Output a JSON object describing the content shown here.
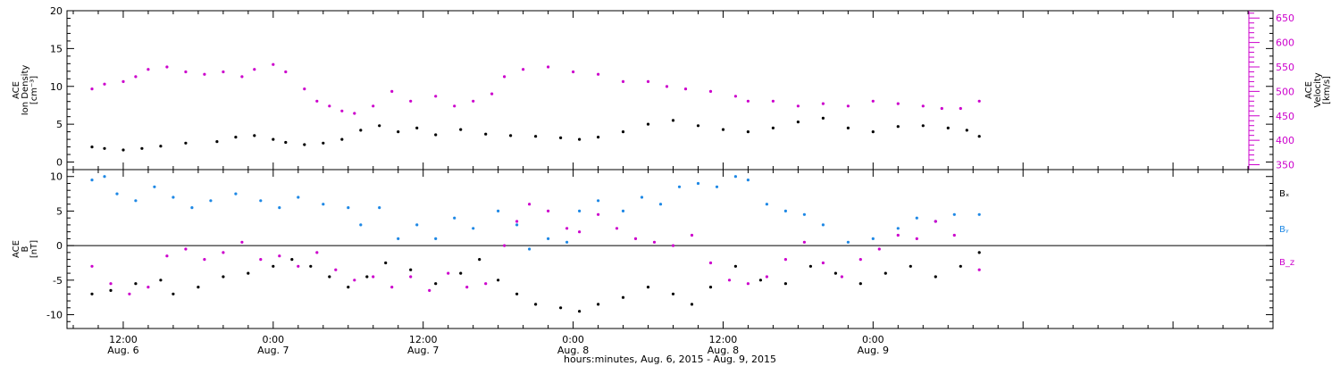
{
  "chart_data": [
    {
      "type": "scatter",
      "panel": "plasma",
      "ylabel": [
        "ACE",
        "Ion Density",
        "[cm⁻³]"
      ],
      "ylim": [
        -1,
        20
      ],
      "yticks": [
        0,
        5,
        10,
        15,
        20
      ],
      "y2label": [
        "ACE",
        "Velocity",
        "[km/s]"
      ],
      "y2lim": [
        340,
        665
      ],
      "y2ticks": [
        350,
        400,
        450,
        500,
        550,
        600,
        650
      ],
      "series": [
        {
          "color": "#000000",
          "axis": "left",
          "points": [
            [
              9.5,
              2.0
            ],
            [
              10.5,
              1.8
            ],
            [
              12.0,
              1.6
            ],
            [
              13.5,
              1.8
            ],
            [
              15.0,
              2.1
            ],
            [
              17.0,
              2.5
            ],
            [
              19.5,
              2.7
            ],
            [
              21.0,
              3.3
            ],
            [
              22.5,
              3.5
            ],
            [
              24.0,
              3.0
            ],
            [
              25.0,
              2.6
            ],
            [
              26.5,
              2.3
            ],
            [
              28.0,
              2.5
            ],
            [
              29.5,
              3.0
            ],
            [
              31.0,
              4.2
            ],
            [
              32.5,
              4.8
            ],
            [
              34.0,
              4.0
            ],
            [
              35.5,
              4.5
            ],
            [
              37.0,
              3.6
            ],
            [
              39.0,
              4.3
            ],
            [
              41.0,
              3.7
            ],
            [
              43.0,
              3.5
            ],
            [
              45.0,
              3.4
            ],
            [
              47.0,
              3.2
            ],
            [
              48.5,
              3.0
            ],
            [
              50.0,
              3.3
            ],
            [
              52.0,
              4.0
            ],
            [
              54.0,
              5.0
            ],
            [
              56.0,
              5.5
            ],
            [
              58.0,
              4.8
            ],
            [
              60.0,
              4.3
            ],
            [
              62.0,
              4.0
            ],
            [
              64.0,
              4.5
            ],
            [
              66.0,
              5.3
            ],
            [
              68.0,
              5.8
            ],
            [
              70.0,
              4.5
            ],
            [
              72.0,
              4.0
            ],
            [
              74.0,
              4.7
            ],
            [
              76.0,
              4.8
            ],
            [
              78.0,
              4.5
            ],
            [
              79.5,
              4.2
            ],
            [
              80.5,
              3.4
            ]
          ]
        },
        {
          "color": "#cc00cc",
          "axis": "right",
          "points": [
            [
              9.5,
              505
            ],
            [
              10.5,
              515
            ],
            [
              12.0,
              520
            ],
            [
              13.0,
              530
            ],
            [
              14.0,
              545
            ],
            [
              15.5,
              550
            ],
            [
              17.0,
              540
            ],
            [
              18.5,
              535
            ],
            [
              20.0,
              540
            ],
            [
              21.5,
              530
            ],
            [
              22.5,
              545
            ],
            [
              24.0,
              555
            ],
            [
              25.0,
              540
            ],
            [
              26.5,
              505
            ],
            [
              27.5,
              480
            ],
            [
              28.5,
              470
            ],
            [
              29.5,
              460
            ],
            [
              30.5,
              455
            ],
            [
              32.0,
              470
            ],
            [
              33.5,
              500
            ],
            [
              35.0,
              480
            ],
            [
              37.0,
              490
            ],
            [
              38.5,
              470
            ],
            [
              40.0,
              480
            ],
            [
              41.5,
              495
            ],
            [
              42.5,
              530
            ],
            [
              44.0,
              545
            ],
            [
              46.0,
              550
            ],
            [
              48.0,
              540
            ],
            [
              50.0,
              535
            ],
            [
              52.0,
              520
            ],
            [
              54.0,
              520
            ],
            [
              55.5,
              510
            ],
            [
              57.0,
              505
            ],
            [
              59.0,
              500
            ],
            [
              61.0,
              490
            ],
            [
              62.0,
              480
            ],
            [
              64.0,
              480
            ],
            [
              66.0,
              470
            ],
            [
              68.0,
              475
            ],
            [
              70.0,
              470
            ],
            [
              72.0,
              480
            ],
            [
              74.0,
              475
            ],
            [
              76.0,
              470
            ],
            [
              77.5,
              465
            ],
            [
              79.0,
              465
            ],
            [
              80.5,
              480
            ]
          ]
        }
      ]
    },
    {
      "type": "scatter",
      "panel": "imf",
      "ylabel": [
        "ACE",
        "B",
        "[nT]"
      ],
      "ylim": [
        -12,
        11
      ],
      "yticks": [
        -10,
        -5,
        0,
        5,
        10
      ],
      "zero_line": true,
      "legend": [
        "Bₓ",
        "Bᵧ",
        "B_z"
      ],
      "series": [
        {
          "name": "Bₓ",
          "color": "#000000",
          "points": [
            [
              9.5,
              -7.0
            ],
            [
              11.0,
              -6.5
            ],
            [
              13.0,
              -5.5
            ],
            [
              15.0,
              -5.0
            ],
            [
              16.0,
              -7.0
            ],
            [
              18.0,
              -6.0
            ],
            [
              20.0,
              -4.5
            ],
            [
              22.0,
              -4.0
            ],
            [
              24.0,
              -3.0
            ],
            [
              25.5,
              -2.0
            ],
            [
              27.0,
              -3.0
            ],
            [
              28.5,
              -4.5
            ],
            [
              30.0,
              -6.0
            ],
            [
              31.5,
              -4.5
            ],
            [
              33.0,
              -2.5
            ],
            [
              35.0,
              -3.5
            ],
            [
              37.0,
              -5.5
            ],
            [
              39.0,
              -4.0
            ],
            [
              40.5,
              -2.0
            ],
            [
              42.0,
              -5.0
            ],
            [
              43.5,
              -7.0
            ],
            [
              45.0,
              -8.5
            ],
            [
              47.0,
              -9.0
            ],
            [
              48.5,
              -9.5
            ],
            [
              50.0,
              -8.5
            ],
            [
              52.0,
              -7.5
            ],
            [
              54.0,
              -6.0
            ],
            [
              56.0,
              -7.0
            ],
            [
              57.5,
              -8.5
            ],
            [
              59.0,
              -6.0
            ],
            [
              61.0,
              -3.0
            ],
            [
              63.0,
              -5.0
            ],
            [
              65.0,
              -5.5
            ],
            [
              67.0,
              -3.0
            ],
            [
              69.0,
              -4.0
            ],
            [
              71.0,
              -5.5
            ],
            [
              73.0,
              -4.0
            ],
            [
              75.0,
              -3.0
            ],
            [
              77.0,
              -4.5
            ],
            [
              79.0,
              -3.0
            ],
            [
              80.5,
              -1.0
            ]
          ]
        },
        {
          "name": "Bᵧ",
          "color": "#1e88e5",
          "points": [
            [
              9.5,
              9.5
            ],
            [
              10.5,
              10.0
            ],
            [
              11.5,
              7.5
            ],
            [
              13.0,
              6.5
            ],
            [
              14.5,
              8.5
            ],
            [
              16.0,
              7.0
            ],
            [
              17.5,
              5.5
            ],
            [
              19.0,
              6.5
            ],
            [
              21.0,
              7.5
            ],
            [
              23.0,
              6.5
            ],
            [
              24.5,
              5.5
            ],
            [
              26.0,
              7.0
            ],
            [
              28.0,
              6.0
            ],
            [
              30.0,
              5.5
            ],
            [
              31.0,
              3.0
            ],
            [
              32.5,
              5.5
            ],
            [
              34.0,
              1.0
            ],
            [
              35.5,
              3.0
            ],
            [
              37.0,
              1.0
            ],
            [
              38.5,
              4.0
            ],
            [
              40.0,
              2.5
            ],
            [
              42.0,
              5.0
            ],
            [
              43.5,
              3.0
            ],
            [
              44.5,
              -0.5
            ],
            [
              46.0,
              1.0
            ],
            [
              47.5,
              0.5
            ],
            [
              48.5,
              5.0
            ],
            [
              50.0,
              6.5
            ],
            [
              52.0,
              5.0
            ],
            [
              53.5,
              7.0
            ],
            [
              55.0,
              6.0
            ],
            [
              56.5,
              8.5
            ],
            [
              58.0,
              9.0
            ],
            [
              59.5,
              8.5
            ],
            [
              61.0,
              10.0
            ],
            [
              62.0,
              9.5
            ],
            [
              63.5,
              6.0
            ],
            [
              65.0,
              5.0
            ],
            [
              66.5,
              4.5
            ],
            [
              68.0,
              3.0
            ],
            [
              70.0,
              0.5
            ],
            [
              72.0,
              1.0
            ],
            [
              74.0,
              2.5
            ],
            [
              75.5,
              4.0
            ],
            [
              77.0,
              3.5
            ],
            [
              78.5,
              4.5
            ],
            [
              80.5,
              4.5
            ]
          ]
        },
        {
          "name": "B_z",
          "color": "#cc00cc",
          "points": [
            [
              9.5,
              -3.0
            ],
            [
              11.0,
              -5.5
            ],
            [
              12.5,
              -7.0
            ],
            [
              14.0,
              -6.0
            ],
            [
              15.5,
              -1.5
            ],
            [
              17.0,
              -0.5
            ],
            [
              18.5,
              -2.0
            ],
            [
              20.0,
              -1.0
            ],
            [
              21.5,
              0.5
            ],
            [
              23.0,
              -2.0
            ],
            [
              24.5,
              -1.5
            ],
            [
              26.0,
              -3.0
            ],
            [
              27.5,
              -1.0
            ],
            [
              29.0,
              -3.5
            ],
            [
              30.5,
              -5.0
            ],
            [
              32.0,
              -4.5
            ],
            [
              33.5,
              -6.0
            ],
            [
              35.0,
              -4.5
            ],
            [
              36.5,
              -6.5
            ],
            [
              38.0,
              -4.0
            ],
            [
              39.5,
              -6.0
            ],
            [
              41.0,
              -5.5
            ],
            [
              42.5,
              0.0
            ],
            [
              43.5,
              3.5
            ],
            [
              44.5,
              6.0
            ],
            [
              46.0,
              5.0
            ],
            [
              47.5,
              2.5
            ],
            [
              48.5,
              2.0
            ],
            [
              50.0,
              4.5
            ],
            [
              51.5,
              2.5
            ],
            [
              53.0,
              1.0
            ],
            [
              54.5,
              0.5
            ],
            [
              56.0,
              0.0
            ],
            [
              57.5,
              1.5
            ],
            [
              59.0,
              -2.5
            ],
            [
              60.5,
              -5.0
            ],
            [
              62.0,
              -5.5
            ],
            [
              63.5,
              -4.5
            ],
            [
              65.0,
              -2.0
            ],
            [
              66.5,
              0.5
            ],
            [
              68.0,
              -2.5
            ],
            [
              69.5,
              -4.5
            ],
            [
              71.0,
              -2.0
            ],
            [
              72.5,
              -0.5
            ],
            [
              74.0,
              1.5
            ],
            [
              75.5,
              1.0
            ],
            [
              77.0,
              3.5
            ],
            [
              78.5,
              1.5
            ],
            [
              80.5,
              -3.5
            ]
          ]
        }
      ]
    }
  ],
  "x_axis": {
    "xlim": [
      7.5,
      104.0
    ],
    "xlabel": "hours:minutes, Aug.  6, 2015 - Aug.  9, 2015",
    "ticks": [
      {
        "x": 12,
        "time": "12:00",
        "date": "Aug. 6"
      },
      {
        "x": 24,
        "time": "0:00",
        "date": "Aug. 7"
      },
      {
        "x": 36,
        "time": "12:00",
        "date": "Aug. 7"
      },
      {
        "x": 48,
        "time": "0:00",
        "date": "Aug. 8"
      },
      {
        "x": 60,
        "time": "12:00",
        "date": "Aug. 8"
      },
      {
        "x": 72,
        "time": "0:00",
        "date": "Aug. 9"
      }
    ]
  }
}
